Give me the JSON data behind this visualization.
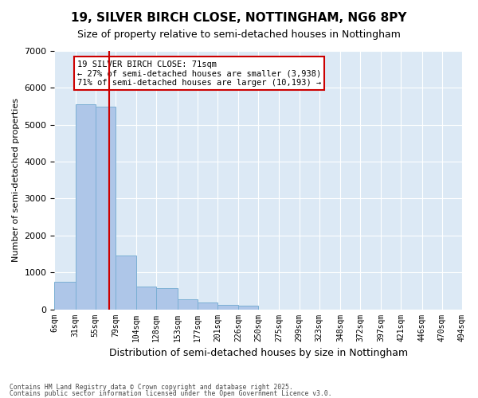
{
  "title": "19, SILVER BIRCH CLOSE, NOTTINGHAM, NG6 8PY",
  "subtitle": "Size of property relative to semi-detached houses in Nottingham",
  "xlabel": "Distribution of semi-detached houses by size in Nottingham",
  "ylabel": "Number of semi-detached properties",
  "footer_line1": "Contains HM Land Registry data © Crown copyright and database right 2025.",
  "footer_line2": "Contains public sector information licensed under the Open Government Licence v3.0.",
  "annotation_title": "19 SILVER BIRCH CLOSE: 71sqm",
  "annotation_line1": "← 27% of semi-detached houses are smaller (3,938)",
  "annotation_line2": "71% of semi-detached houses are larger (10,193) →",
  "property_size": 71,
  "bar_color": "#aec6e8",
  "bar_edge_color": "#7bafd4",
  "vline_color": "#cc0000",
  "background_color": "#dce9f5",
  "annotation_box_color": "#ffffff",
  "annotation_box_edge": "#cc0000",
  "bins": [
    6,
    31,
    55,
    79,
    104,
    128,
    153,
    177,
    201,
    226,
    250,
    275,
    299,
    323,
    348,
    372,
    397,
    421,
    446,
    470,
    494
  ],
  "bin_labels": [
    "6sqm",
    "31sqm",
    "55sqm",
    "79sqm",
    "104sqm",
    "128sqm",
    "153sqm",
    "177sqm",
    "201sqm",
    "226sqm",
    "250sqm",
    "275sqm",
    "299sqm",
    "323sqm",
    "348sqm",
    "372sqm",
    "397sqm",
    "421sqm",
    "446sqm",
    "470sqm",
    "494sqm"
  ],
  "counts": [
    750,
    5550,
    5500,
    1450,
    625,
    580,
    275,
    175,
    130,
    90,
    0,
    0,
    0,
    0,
    0,
    0,
    0,
    0,
    0,
    0
  ],
  "ylim": [
    0,
    7000
  ],
  "yticks": [
    0,
    1000,
    2000,
    3000,
    4000,
    5000,
    6000,
    7000
  ]
}
